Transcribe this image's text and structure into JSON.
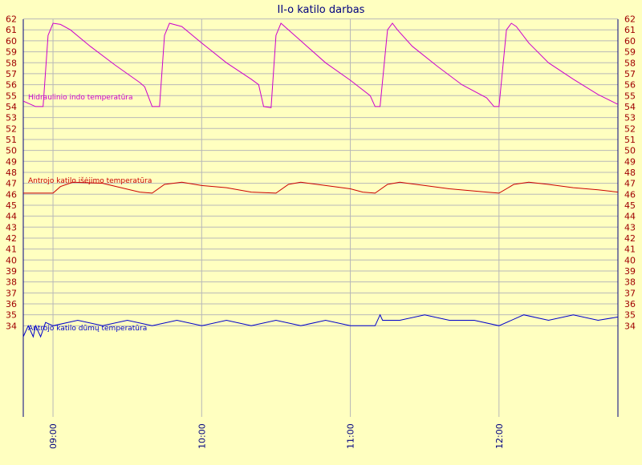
{
  "chart_data": {
    "type": "line",
    "title": "II-o katilo darbas",
    "xlabel": "",
    "ylabel": "",
    "ylim": [
      33,
      62
    ],
    "y_ticks": [
      34,
      35,
      36,
      37,
      38,
      39,
      40,
      41,
      42,
      43,
      44,
      45,
      46,
      47,
      48,
      49,
      50,
      51,
      52,
      53,
      54,
      55,
      56,
      57,
      58,
      59,
      60,
      61,
      62
    ],
    "x_ticks": [
      "09:00",
      "10:00",
      "11:00",
      "12:00"
    ],
    "xlim": [
      "08:48",
      "12:48"
    ],
    "grid": true,
    "series": [
      {
        "name": "Hidraulinio indo temperatūra",
        "color": "#cc00cc",
        "x": [
          "08:48",
          "08:53",
          "08:56",
          "08:58",
          "09:00",
          "09:03",
          "09:07",
          "09:15",
          "09:25",
          "09:35",
          "09:37",
          "09:40",
          "09:43",
          "09:45",
          "09:47",
          "09:52",
          "10:00",
          "10:10",
          "10:20",
          "10:23",
          "10:25",
          "10:28",
          "10:30",
          "10:32",
          "10:40",
          "10:50",
          "11:00",
          "11:08",
          "11:10",
          "11:12",
          "11:15",
          "11:17",
          "11:19",
          "11:25",
          "11:35",
          "11:45",
          "11:55",
          "11:58",
          "12:00",
          "12:03",
          "12:05",
          "12:07",
          "12:12",
          "12:20",
          "12:30",
          "12:40",
          "12:48"
        ],
        "y": [
          54.5,
          54.0,
          54.0,
          60.5,
          61.6,
          61.5,
          61.0,
          59.5,
          57.8,
          56.2,
          55.8,
          54.0,
          54.0,
          60.5,
          61.6,
          61.3,
          59.8,
          58.0,
          56.5,
          56.0,
          54.0,
          53.9,
          60.5,
          61.6,
          60.0,
          58.0,
          56.4,
          55.0,
          54.0,
          54.0,
          61.0,
          61.6,
          61.0,
          59.5,
          57.7,
          56.0,
          54.8,
          54.0,
          54.0,
          61.0,
          61.6,
          61.3,
          59.8,
          58.0,
          56.5,
          55.1,
          54.2
        ]
      },
      {
        "name": "Antrojo katilo išėjimo temperatūra",
        "color": "#cc0000",
        "x": [
          "08:48",
          "09:00",
          "09:03",
          "09:08",
          "09:20",
          "09:35",
          "09:40",
          "09:45",
          "09:52",
          "10:00",
          "10:10",
          "10:20",
          "10:30",
          "10:35",
          "10:40",
          "10:50",
          "11:00",
          "11:05",
          "11:10",
          "11:15",
          "11:20",
          "11:30",
          "11:40",
          "11:55",
          "12:00",
          "12:06",
          "12:12",
          "12:20",
          "12:30",
          "12:40",
          "12:48"
        ],
        "y": [
          46.1,
          46.1,
          46.7,
          47.1,
          47.0,
          46.2,
          46.1,
          46.9,
          47.1,
          46.8,
          46.6,
          46.2,
          46.1,
          46.9,
          47.1,
          46.8,
          46.5,
          46.2,
          46.1,
          46.9,
          47.1,
          46.8,
          46.5,
          46.2,
          46.1,
          46.9,
          47.1,
          46.9,
          46.6,
          46.4,
          46.2
        ]
      },
      {
        "name": "Antrojo katilo dūmų temperatūra",
        "color": "#0000cc",
        "x": [
          "08:48",
          "08:50",
          "08:52",
          "08:53",
          "08:55",
          "08:57",
          "09:00",
          "09:10",
          "09:20",
          "09:30",
          "09:40",
          "09:50",
          "10:00",
          "10:10",
          "10:20",
          "10:30",
          "10:40",
          "10:50",
          "11:00",
          "11:10",
          "11:12",
          "11:13",
          "11:20",
          "11:30",
          "11:40",
          "11:50",
          "12:00",
          "12:10",
          "12:20",
          "12:30",
          "12:40",
          "12:48"
        ],
        "y": [
          33,
          34,
          33,
          34,
          33,
          34.3,
          34,
          34.5,
          34,
          34.5,
          34,
          34.5,
          34,
          34.5,
          34,
          34.5,
          34,
          34.5,
          34,
          34,
          35,
          34.5,
          34.5,
          35,
          34.5,
          34.5,
          34,
          35,
          34.5,
          35,
          34.5,
          34.8
        ]
      }
    ]
  }
}
